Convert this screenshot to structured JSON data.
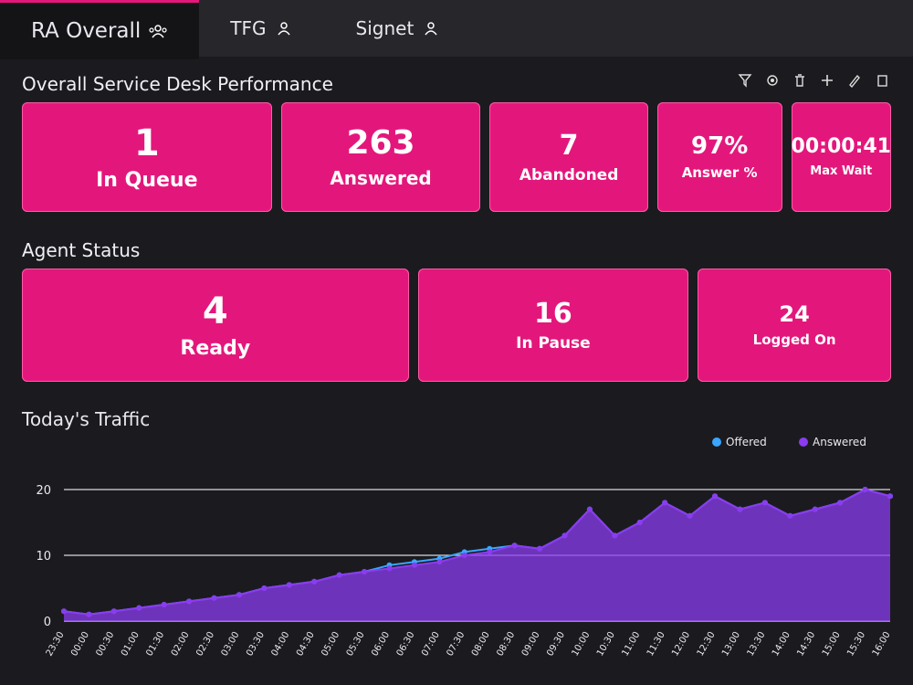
{
  "tabs": [
    "RA Overall",
    "TFG",
    "Signet"
  ],
  "performance": {
    "title": "Overall Service Desk Performance",
    "tiles": [
      {
        "value": 1,
        "label": "In Queue"
      },
      {
        "value": 263,
        "label": "Answered"
      },
      {
        "value": 7,
        "label": "Abandoned"
      },
      {
        "value": "97%",
        "label": "Answer %"
      },
      {
        "value": "00:00:41",
        "label": "Max Wait"
      }
    ]
  },
  "agents": {
    "title": "Agent Status",
    "tiles": [
      {
        "value": 4,
        "label": "Ready"
      },
      {
        "value": 16,
        "label": "In Pause"
      },
      {
        "value": 24,
        "label": "Logged On"
      }
    ]
  },
  "chart_data": {
    "type": "line",
    "title": "Today's Traffic",
    "categories": [
      "23:30",
      "00:00",
      "00:30",
      "01:00",
      "01:30",
      "02:00",
      "02:30",
      "03:00",
      "03:30",
      "04:00",
      "04:30",
      "05:00",
      "05:30",
      "06:00",
      "06:30",
      "07:00",
      "07:30",
      "08:00",
      "08:30",
      "09:00",
      "09:30",
      "10:00",
      "10:30",
      "11:00",
      "11:30",
      "12:00",
      "12:30",
      "13:00",
      "13:30",
      "14:00",
      "14:30",
      "15:00",
      "15:30",
      "16:00"
    ],
    "series": [
      {
        "name": "Offered",
        "color": "#3aa6ff",
        "values": [
          1.5,
          1,
          1.5,
          2,
          2.5,
          3,
          3.5,
          4,
          5,
          5.5,
          6,
          7,
          7.5,
          8.5,
          9,
          9.5,
          10.5,
          11,
          11.5,
          11,
          13,
          17,
          13,
          15,
          18,
          16,
          19,
          17,
          18,
          16,
          17,
          18,
          20,
          19
        ]
      },
      {
        "name": "Answered",
        "color": "#8b3cf0",
        "values": [
          1.5,
          1,
          1.5,
          2,
          2.5,
          3,
          3.5,
          4,
          5,
          5.5,
          6,
          7,
          7.5,
          8,
          8.5,
          9,
          10,
          10.5,
          11.5,
          11,
          13,
          17,
          13,
          15,
          18,
          16,
          19,
          17,
          18,
          16,
          17,
          18,
          20,
          19
        ]
      }
    ],
    "ylim": [
      0,
      25
    ],
    "yticks": [
      0,
      10,
      20
    ],
    "grid": true,
    "legend": "top-right"
  }
}
